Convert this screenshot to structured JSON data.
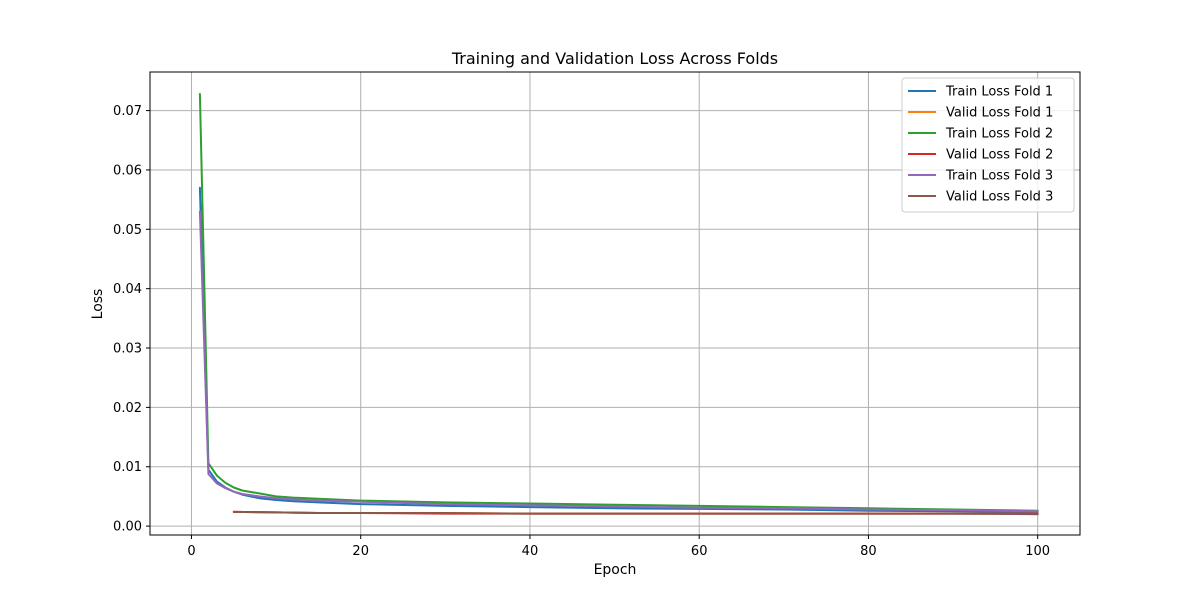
{
  "chart_data": {
    "type": "line",
    "title": "Training and Validation Loss Across Folds",
    "xlabel": "Epoch",
    "ylabel": "Loss",
    "xlim": [
      -4.9,
      105
    ],
    "ylim": [
      -0.0015,
      0.0765
    ],
    "xticks": [
      0,
      20,
      40,
      60,
      80,
      100
    ],
    "yticks": [
      0.0,
      0.01,
      0.02,
      0.03,
      0.04,
      0.05,
      0.06,
      0.07
    ],
    "xtick_labels": [
      "0",
      "20",
      "40",
      "60",
      "80",
      "100"
    ],
    "ytick_labels": [
      "0.00",
      "0.01",
      "0.02",
      "0.03",
      "0.04",
      "0.05",
      "0.06",
      "0.07"
    ],
    "grid": true,
    "legend_position": "upper right",
    "series": [
      {
        "name": "Train Loss Fold 1",
        "color": "#1f77b4",
        "x": [
          1,
          2,
          3,
          4,
          5,
          6,
          8,
          10,
          12,
          15,
          20,
          30,
          40,
          50,
          60,
          70,
          80,
          90,
          100
        ],
        "y": [
          0.057,
          0.0095,
          0.0075,
          0.0065,
          0.0058,
          0.0053,
          0.0047,
          0.0044,
          0.0042,
          0.004,
          0.0037,
          0.0034,
          0.0032,
          0.003,
          0.0029,
          0.0028,
          0.0026,
          0.0025,
          0.0024
        ]
      },
      {
        "name": "Valid Loss Fold 1",
        "color": "#ff7f0e",
        "x": [
          5,
          10,
          15,
          20,
          30,
          40,
          50,
          60,
          70,
          80,
          90,
          100
        ],
        "y": [
          0.0024,
          0.0023,
          0.0022,
          0.0022,
          0.0022,
          0.0021,
          0.0021,
          0.0021,
          0.0021,
          0.0021,
          0.0021,
          0.0021
        ]
      },
      {
        "name": "Train Loss Fold 2",
        "color": "#2ca02c",
        "x": [
          1,
          2,
          3,
          4,
          5,
          6,
          8,
          10,
          12,
          15,
          20,
          30,
          40,
          50,
          60,
          70,
          80,
          90,
          100
        ],
        "y": [
          0.0728,
          0.0106,
          0.0085,
          0.0073,
          0.0065,
          0.006,
          0.0055,
          0.005,
          0.0048,
          0.0046,
          0.0043,
          0.004,
          0.0038,
          0.0036,
          0.0034,
          0.0032,
          0.003,
          0.0028,
          0.0026
        ]
      },
      {
        "name": "Valid Loss Fold 2",
        "color": "#d62728",
        "x": [
          5,
          10,
          15,
          20,
          30,
          40,
          50,
          60,
          70,
          80,
          90,
          100
        ],
        "y": [
          0.0024,
          0.0023,
          0.0022,
          0.0022,
          0.0021,
          0.0021,
          0.0021,
          0.0021,
          0.0021,
          0.0021,
          0.0021,
          0.0021
        ]
      },
      {
        "name": "Train Loss Fold 3",
        "color": "#9467bd",
        "x": [
          1,
          2,
          3,
          4,
          5,
          6,
          8,
          10,
          12,
          15,
          20,
          30,
          40,
          50,
          60,
          70,
          80,
          90,
          100
        ],
        "y": [
          0.053,
          0.0088,
          0.0072,
          0.0064,
          0.0058,
          0.0054,
          0.005,
          0.0047,
          0.0045,
          0.0043,
          0.0041,
          0.0037,
          0.0035,
          0.0033,
          0.0031,
          0.003,
          0.0028,
          0.0027,
          0.0025
        ]
      },
      {
        "name": "Valid Loss Fold 3",
        "color": "#8c564b",
        "x": [
          5,
          10,
          15,
          20,
          30,
          40,
          50,
          60,
          70,
          80,
          90,
          100
        ],
        "y": [
          0.0024,
          0.0023,
          0.0022,
          0.0022,
          0.0022,
          0.0021,
          0.0021,
          0.0021,
          0.0021,
          0.0021,
          0.0021,
          0.002
        ]
      }
    ]
  }
}
